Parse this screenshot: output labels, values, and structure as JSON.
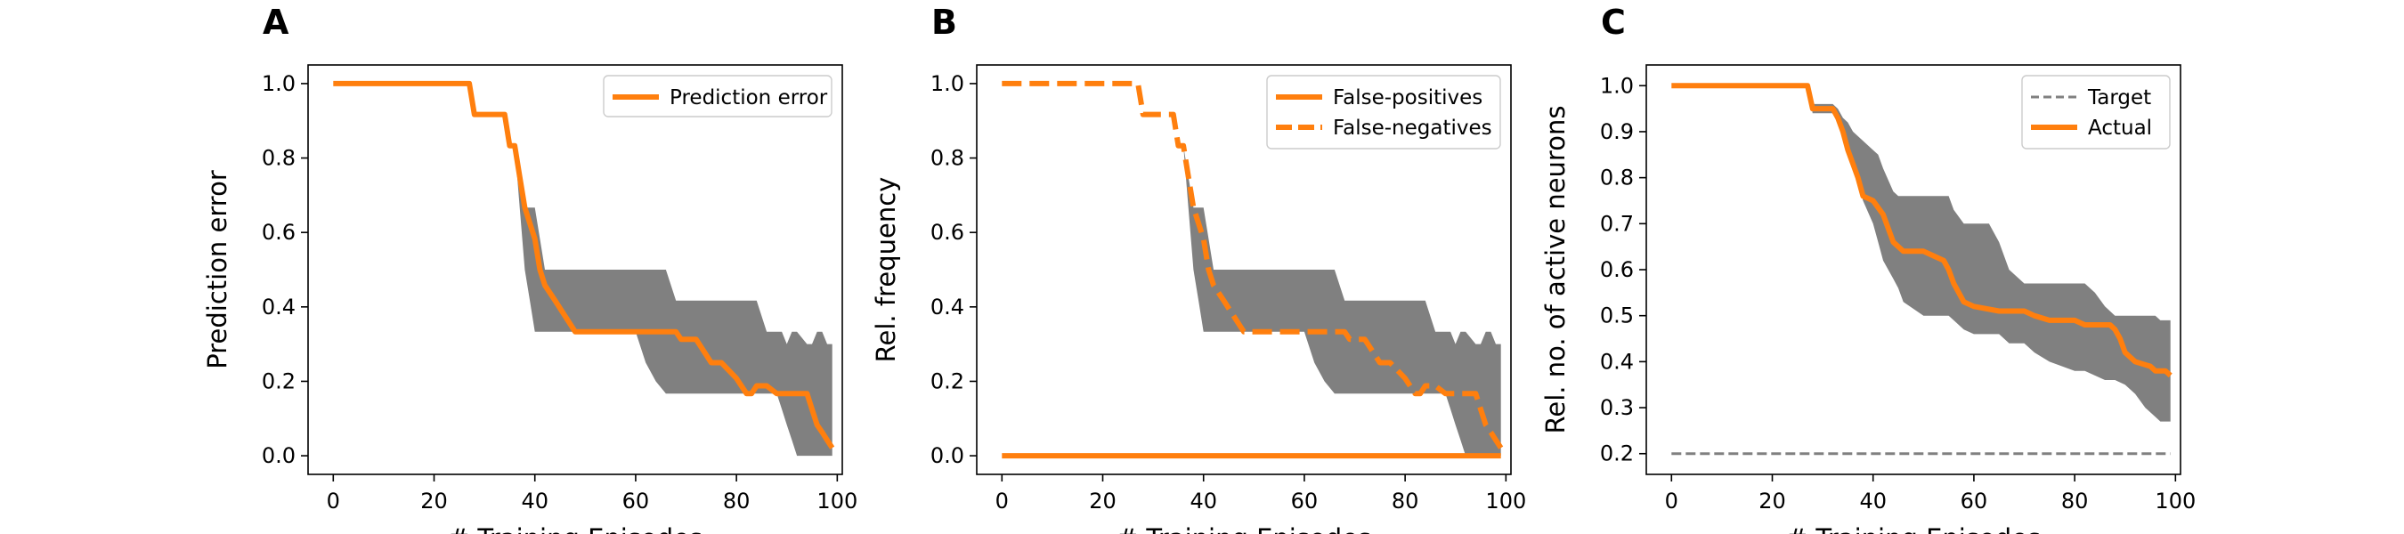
{
  "colors": {
    "orange": "#ff7f0e",
    "band": "#808080",
    "target": "#808080",
    "axis": "#000000"
  },
  "chart_data": [
    {
      "type": "line",
      "panel_label": "A",
      "xlabel": "# Training Episodes",
      "ylabel": "Prediction error",
      "xlim": [
        -5,
        101
      ],
      "ylim": [
        -0.05,
        1.05
      ],
      "xticks": [
        0,
        20,
        40,
        60,
        80,
        100
      ],
      "yticks": [
        0.0,
        0.2,
        0.4,
        0.6,
        0.8,
        1.0
      ],
      "yticks_labels": [
        "0.0",
        "0.2",
        "0.4",
        "0.6",
        "0.8",
        "1.0"
      ],
      "legend": "top-right",
      "series": [
        {
          "name": "Prediction error",
          "style": "solid",
          "x": [
            0,
            27,
            28,
            34,
            35,
            36,
            37,
            38,
            40,
            41,
            42,
            44,
            46,
            48,
            50,
            55,
            60,
            65,
            68,
            69,
            72,
            73,
            75,
            77,
            80,
            82,
            83,
            84,
            86,
            88,
            90,
            92,
            94,
            95,
            96,
            97,
            98,
            99
          ],
          "y": [
            1.0,
            1.0,
            0.917,
            0.917,
            0.833,
            0.833,
            0.75,
            0.667,
            0.583,
            0.5,
            0.458,
            0.417,
            0.375,
            0.333,
            0.333,
            0.333,
            0.333,
            0.333,
            0.333,
            0.313,
            0.313,
            0.292,
            0.25,
            0.25,
            0.208,
            0.167,
            0.167,
            0.188,
            0.188,
            0.167,
            0.167,
            0.167,
            0.167,
            0.125,
            0.083,
            0.063,
            0.042,
            0.021
          ]
        }
      ],
      "band": {
        "x": [
          0,
          27,
          28,
          34,
          35,
          36,
          37,
          38,
          39,
          40,
          41,
          42,
          44,
          46,
          48,
          50,
          55,
          60,
          62,
          64,
          66,
          68,
          70,
          75,
          80,
          82,
          84,
          86,
          88,
          89,
          90,
          91,
          92,
          94,
          95,
          96,
          97,
          98,
          99
        ],
        "lower": [
          1.0,
          1.0,
          0.917,
          0.917,
          0.833,
          0.833,
          0.667,
          0.5,
          0.417,
          0.333,
          0.333,
          0.333,
          0.333,
          0.333,
          0.333,
          0.333,
          0.333,
          0.333,
          0.25,
          0.2,
          0.167,
          0.167,
          0.167,
          0.167,
          0.167,
          0.167,
          0.167,
          0.167,
          0.167,
          0.125,
          0.083,
          0.042,
          0.0,
          0.0,
          0.0,
          0.0,
          0.0,
          0.0,
          0.0
        ],
        "upper": [
          1.0,
          1.0,
          0.917,
          0.917,
          0.833,
          0.833,
          0.75,
          0.667,
          0.667,
          0.667,
          0.583,
          0.5,
          0.5,
          0.5,
          0.5,
          0.5,
          0.5,
          0.5,
          0.5,
          0.5,
          0.5,
          0.417,
          0.417,
          0.417,
          0.417,
          0.417,
          0.417,
          0.333,
          0.333,
          0.333,
          0.3,
          0.333,
          0.333,
          0.3,
          0.3,
          0.333,
          0.333,
          0.3,
          0.3
        ]
      }
    },
    {
      "type": "line",
      "panel_label": "B",
      "xlabel": "# Training Episodes",
      "ylabel": "Rel. frequency",
      "xlim": [
        -5,
        101
      ],
      "ylim": [
        -0.05,
        1.05
      ],
      "xticks": [
        0,
        20,
        40,
        60,
        80,
        100
      ],
      "yticks": [
        0.0,
        0.2,
        0.4,
        0.6,
        0.8,
        1.0
      ],
      "yticks_labels": [
        "0.0",
        "0.2",
        "0.4",
        "0.6",
        "0.8",
        "1.0"
      ],
      "legend": "top-right",
      "series": [
        {
          "name": "False-positives",
          "style": "solid",
          "x": [
            0,
            99
          ],
          "y": [
            0.0,
            0.0
          ]
        },
        {
          "name": "False-negatives",
          "style": "dashed",
          "x": [
            0,
            27,
            28,
            34,
            35,
            36,
            37,
            38,
            40,
            41,
            42,
            44,
            46,
            48,
            50,
            55,
            60,
            65,
            68,
            69,
            72,
            73,
            75,
            77,
            80,
            82,
            83,
            84,
            86,
            88,
            90,
            92,
            94,
            95,
            96,
            97,
            98,
            99
          ],
          "y": [
            1.0,
            1.0,
            0.917,
            0.917,
            0.833,
            0.833,
            0.75,
            0.667,
            0.583,
            0.5,
            0.458,
            0.417,
            0.375,
            0.333,
            0.333,
            0.333,
            0.333,
            0.333,
            0.333,
            0.313,
            0.313,
            0.292,
            0.25,
            0.25,
            0.208,
            0.167,
            0.167,
            0.188,
            0.188,
            0.167,
            0.167,
            0.167,
            0.167,
            0.125,
            0.083,
            0.063,
            0.042,
            0.021
          ]
        }
      ],
      "band": {
        "x": [
          0,
          27,
          28,
          34,
          35,
          36,
          37,
          38,
          39,
          40,
          41,
          42,
          44,
          46,
          48,
          50,
          55,
          60,
          62,
          64,
          66,
          68,
          70,
          75,
          80,
          82,
          84,
          86,
          88,
          89,
          90,
          91,
          92,
          94,
          95,
          96,
          97,
          98,
          99
        ],
        "lower": [
          1.0,
          1.0,
          0.917,
          0.917,
          0.833,
          0.833,
          0.667,
          0.5,
          0.417,
          0.333,
          0.333,
          0.333,
          0.333,
          0.333,
          0.333,
          0.333,
          0.333,
          0.333,
          0.25,
          0.2,
          0.167,
          0.167,
          0.167,
          0.167,
          0.167,
          0.167,
          0.167,
          0.167,
          0.167,
          0.125,
          0.083,
          0.042,
          0.0,
          0.0,
          0.0,
          0.0,
          0.0,
          0.0,
          0.0
        ],
        "upper": [
          1.0,
          1.0,
          0.917,
          0.917,
          0.833,
          0.833,
          0.75,
          0.667,
          0.667,
          0.667,
          0.583,
          0.5,
          0.5,
          0.5,
          0.5,
          0.5,
          0.5,
          0.5,
          0.5,
          0.5,
          0.5,
          0.417,
          0.417,
          0.417,
          0.417,
          0.417,
          0.417,
          0.333,
          0.333,
          0.333,
          0.3,
          0.333,
          0.333,
          0.3,
          0.3,
          0.333,
          0.333,
          0.3,
          0.3
        ]
      }
    },
    {
      "type": "line",
      "panel_label": "C",
      "xlabel": "# Training Episodes",
      "ylabel": "Rel. no. of active neurons",
      "xlim": [
        -5,
        101
      ],
      "ylim": [
        0.155,
        1.045
      ],
      "xticks": [
        0,
        20,
        40,
        60,
        80,
        100
      ],
      "yticks": [
        0.2,
        0.3,
        0.4,
        0.5,
        0.6,
        0.7,
        0.8,
        0.9,
        1.0
      ],
      "yticks_labels": [
        "0.2",
        "0.3",
        "0.4",
        "0.5",
        "0.6",
        "0.7",
        "0.8",
        "0.9",
        "1.0"
      ],
      "legend": "top-right",
      "series": [
        {
          "name": "Target",
          "style": "dashed-thin",
          "x": [
            0,
            99
          ],
          "y": [
            0.2,
            0.2
          ]
        },
        {
          "name": "Actual",
          "style": "solid",
          "x": [
            0,
            27,
            28,
            32,
            33,
            34,
            35,
            36,
            37,
            38,
            40,
            42,
            43,
            44,
            46,
            50,
            52,
            54,
            55,
            56,
            58,
            60,
            65,
            70,
            72,
            75,
            80,
            82,
            85,
            87,
            88,
            89,
            90,
            91,
            92,
            95,
            96,
            97,
            98,
            99
          ],
          "y": [
            1.0,
            1.0,
            0.95,
            0.95,
            0.93,
            0.9,
            0.86,
            0.83,
            0.8,
            0.76,
            0.75,
            0.72,
            0.69,
            0.66,
            0.64,
            0.64,
            0.63,
            0.62,
            0.6,
            0.57,
            0.53,
            0.52,
            0.51,
            0.51,
            0.5,
            0.49,
            0.49,
            0.48,
            0.48,
            0.48,
            0.47,
            0.45,
            0.42,
            0.41,
            0.4,
            0.39,
            0.38,
            0.38,
            0.38,
            0.37
          ]
        }
      ],
      "band": {
        "x": [
          0,
          27,
          28,
          32,
          33,
          34,
          35,
          36,
          38,
          40,
          41,
          42,
          44,
          45,
          46,
          50,
          55,
          56,
          58,
          60,
          63,
          65,
          67,
          70,
          72,
          75,
          80,
          82,
          84,
          86,
          88,
          90,
          92,
          94,
          96,
          97,
          98,
          99
        ],
        "lower": [
          1.0,
          1.0,
          0.94,
          0.94,
          0.92,
          0.9,
          0.87,
          0.83,
          0.75,
          0.7,
          0.66,
          0.62,
          0.58,
          0.56,
          0.53,
          0.5,
          0.5,
          0.49,
          0.47,
          0.46,
          0.46,
          0.46,
          0.44,
          0.44,
          0.42,
          0.4,
          0.38,
          0.38,
          0.37,
          0.36,
          0.36,
          0.35,
          0.33,
          0.3,
          0.28,
          0.27,
          0.27,
          0.27
        ],
        "upper": [
          1.0,
          1.0,
          0.96,
          0.96,
          0.95,
          0.93,
          0.92,
          0.9,
          0.88,
          0.86,
          0.85,
          0.82,
          0.77,
          0.76,
          0.76,
          0.76,
          0.76,
          0.73,
          0.7,
          0.7,
          0.7,
          0.66,
          0.6,
          0.57,
          0.57,
          0.57,
          0.57,
          0.57,
          0.55,
          0.52,
          0.5,
          0.5,
          0.5,
          0.5,
          0.5,
          0.49,
          0.49,
          0.49
        ]
      }
    }
  ]
}
